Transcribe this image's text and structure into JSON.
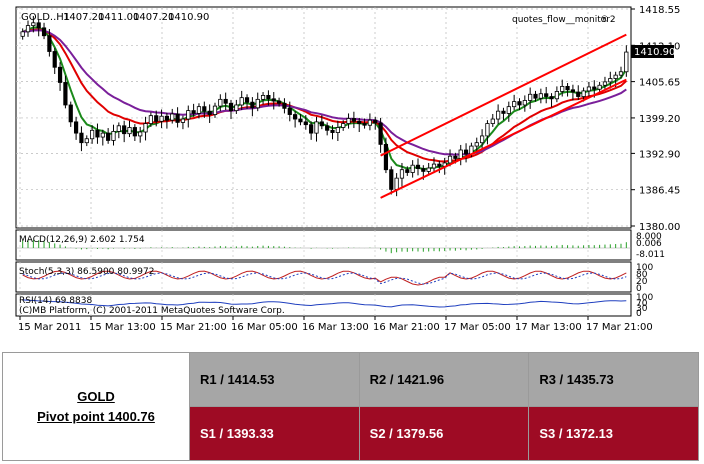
{
  "chart_data": {
    "type": "candlestick",
    "symbol": "GOLD..H1",
    "ohlc_header": [
      "1407.20",
      "1411.00",
      "1407.20",
      "1410.90"
    ],
    "indicator_name": "quotes_flow__monitor2",
    "current_price": "1410.90",
    "y_ticks": [
      "1418.55",
      "1412.10",
      "1405.65",
      "1399.20",
      "1392.90",
      "1386.45",
      "1380.00"
    ],
    "ylim": [
      1380.0,
      1418.55
    ],
    "x_ticks": [
      "15 Mar 2011",
      "15 Mar 13:00",
      "15 Mar 21:00",
      "16 Mar 05:00",
      "16 Mar 13:00",
      "16 Mar 21:00",
      "17 Mar 05:00",
      "17 Mar 13:00",
      "17 Mar 21:00"
    ],
    "candles_close": [
      1414.5,
      1415.6,
      1416.1,
      1415.2,
      1413.8,
      1411.0,
      1408.2,
      1405.5,
      1401.5,
      1398.5,
      1396.5,
      1394.8,
      1395.5,
      1397.0,
      1395.8,
      1396.5,
      1395.2,
      1396.8,
      1397.8,
      1396.4,
      1397.5,
      1396.0,
      1396.7,
      1398.2,
      1399.6,
      1398.6,
      1399.5,
      1398.8,
      1399.9,
      1398.4,
      1399.0,
      1400.5,
      1400.0,
      1401.2,
      1400.4,
      1399.8,
      1401.3,
      1402.5,
      1401.8,
      1400.5,
      1401.5,
      1402.8,
      1402.0,
      1401.0,
      1402.5,
      1403.2,
      1402.6,
      1402.2,
      1401.8,
      1400.9,
      1399.8,
      1399.0,
      1398.5,
      1398.0,
      1396.5,
      1398.5,
      1397.8,
      1397.0,
      1396.6,
      1397.5,
      1398.2,
      1399.1,
      1398.6,
      1398.2,
      1397.9,
      1398.8,
      1398.3,
      1394.5,
      1390.0,
      1386.5,
      1388.5,
      1390.0,
      1389.5,
      1390.8,
      1390.2,
      1389.7,
      1390.3,
      1391.0,
      1390.6,
      1391.2,
      1392.4,
      1392.0,
      1393.5,
      1392.8,
      1394.2,
      1394.8,
      1396.0,
      1398.2,
      1399.0,
      1400.4,
      1400.0,
      1401.2,
      1402.1,
      1401.5,
      1402.3,
      1403.4,
      1402.7,
      1403.5,
      1403.0,
      1402.6,
      1403.9,
      1404.8,
      1404.2,
      1403.8,
      1403.0,
      1404.0,
      1404.7,
      1404.3,
      1405.0,
      1405.6,
      1406.2,
      1406.8,
      1407.4,
      1410.9
    ],
    "trend_channel": {
      "upper": {
        "from": [
          67,
          1392.5
        ],
        "to": [
          113,
          1414.0
        ]
      },
      "lower": {
        "from": [
          67,
          1385.0
        ],
        "to": [
          113,
          1406.0
        ]
      }
    },
    "macd_label": "MACD(12,26,9) 2.602 1.754",
    "macd_ticks": [
      "8.000",
      "0.006",
      "-8.011"
    ],
    "stoch_label": "Stoch(5,3,3) 86.5900 80.9972",
    "stoch_ticks": [
      "100",
      "80",
      "20",
      "0"
    ],
    "rsi_label": "RSI(14) 69.8838",
    "rsi_ticks": [
      "100",
      "70",
      "30",
      "0"
    ],
    "copyright": "(C)MB Platform, (C) 2001-2011 MetaQuotes Software Corp."
  },
  "pivot": {
    "symbol": "GOLD",
    "pivot_label": "Pivot point 1400.76",
    "r1": "R1 / 1414.53",
    "r2": "R2 / 1421.96",
    "r3": "R3 / 1435.73",
    "s1": "S1 / 1393.33",
    "s2": "S2 / 1379.56",
    "s3": "S3 / 1372.13"
  },
  "colors": {
    "ma_fast": "#1b8a1b",
    "ma_slow": "#e00000",
    "ma_purple": "#7a1f9a",
    "channel": "#ff0000",
    "support_bg": "#9e0b24",
    "resistance_bg": "#a6a6a6"
  }
}
